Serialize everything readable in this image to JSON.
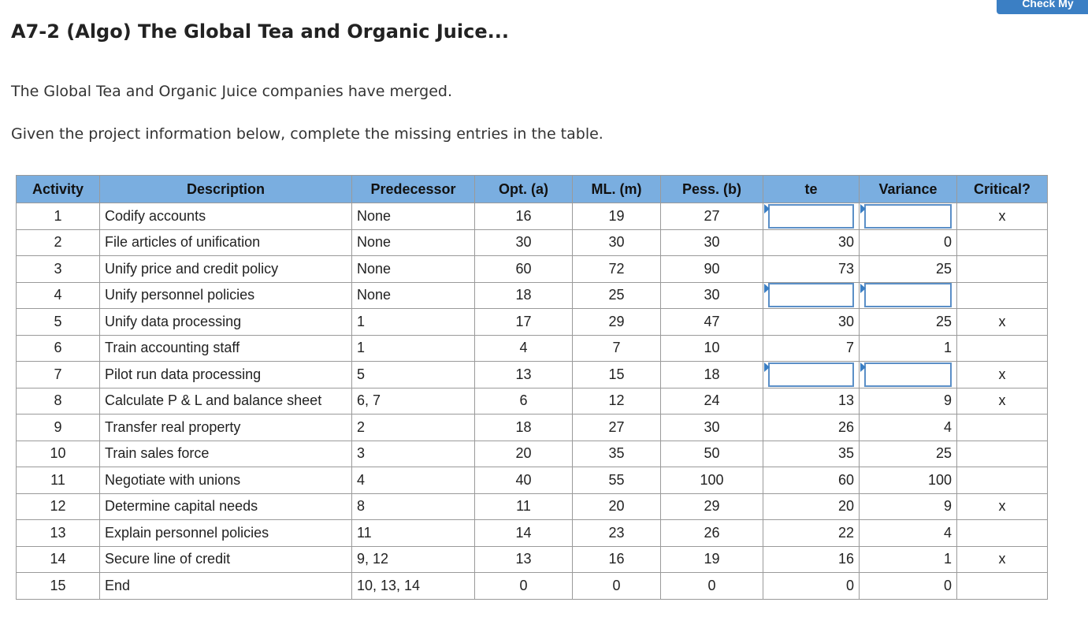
{
  "header": {
    "check_button": "Check My",
    "title": "A7-2 (Algo) The Global Tea and Organic Juice...",
    "intro": "The Global Tea and Organic Juice companies have merged.",
    "instruction": "Given the project information below, complete the missing entries in the table."
  },
  "table": {
    "columns": [
      "Activity",
      "Description",
      "Predecessor",
      "Opt. (a)",
      "ML. (m)",
      "Pess. (b)",
      "te",
      "Variance",
      "Critical?"
    ],
    "rows": [
      {
        "activity": "1",
        "description": "Codify accounts",
        "predecessor": "None",
        "opt": "16",
        "ml": "19",
        "pess": "27",
        "te": null,
        "variance": null,
        "critical": "x"
      },
      {
        "activity": "2",
        "description": "File articles of unification",
        "predecessor": "None",
        "opt": "30",
        "ml": "30",
        "pess": "30",
        "te": "30",
        "variance": "0",
        "critical": ""
      },
      {
        "activity": "3",
        "description": "Unify price and credit policy",
        "predecessor": "None",
        "opt": "60",
        "ml": "72",
        "pess": "90",
        "te": "73",
        "variance": "25",
        "critical": ""
      },
      {
        "activity": "4",
        "description": "Unify personnel policies",
        "predecessor": "None",
        "opt": "18",
        "ml": "25",
        "pess": "30",
        "te": null,
        "variance": null,
        "critical": ""
      },
      {
        "activity": "5",
        "description": "Unify data processing",
        "predecessor": "1",
        "opt": "17",
        "ml": "29",
        "pess": "47",
        "te": "30",
        "variance": "25",
        "critical": "x"
      },
      {
        "activity": "6",
        "description": "Train accounting staff",
        "predecessor": "1",
        "opt": "4",
        "ml": "7",
        "pess": "10",
        "te": "7",
        "variance": "1",
        "critical": ""
      },
      {
        "activity": "7",
        "description": "Pilot run data processing",
        "predecessor": "5",
        "opt": "13",
        "ml": "15",
        "pess": "18",
        "te": null,
        "variance": null,
        "critical": "x"
      },
      {
        "activity": "8",
        "description": "Calculate P & L and balance sheet",
        "predecessor": "6, 7",
        "opt": "6",
        "ml": "12",
        "pess": "24",
        "te": "13",
        "variance": "9",
        "critical": "x"
      },
      {
        "activity": "9",
        "description": "Transfer real property",
        "predecessor": "2",
        "opt": "18",
        "ml": "27",
        "pess": "30",
        "te": "26",
        "variance": "4",
        "critical": ""
      },
      {
        "activity": "10",
        "description": "Train sales force",
        "predecessor": "3",
        "opt": "20",
        "ml": "35",
        "pess": "50",
        "te": "35",
        "variance": "25",
        "critical": ""
      },
      {
        "activity": "11",
        "description": "Negotiate with unions",
        "predecessor": "4",
        "opt": "40",
        "ml": "55",
        "pess": "100",
        "te": "60",
        "variance": "100",
        "critical": ""
      },
      {
        "activity": "12",
        "description": "Determine capital needs",
        "predecessor": "8",
        "opt": "11",
        "ml": "20",
        "pess": "29",
        "te": "20",
        "variance": "9",
        "critical": "x"
      },
      {
        "activity": "13",
        "description": "Explain personnel policies",
        "predecessor": "11",
        "opt": "14",
        "ml": "23",
        "pess": "26",
        "te": "22",
        "variance": "4",
        "critical": ""
      },
      {
        "activity": "14",
        "description": "Secure line of credit",
        "predecessor": "9, 12",
        "opt": "13",
        "ml": "16",
        "pess": "19",
        "te": "16",
        "variance": "1",
        "critical": "x"
      },
      {
        "activity": "15",
        "description": "End",
        "predecessor": "10, 13, 14",
        "opt": "0",
        "ml": "0",
        "pess": "0",
        "te": "0",
        "variance": "0",
        "critical": ""
      }
    ]
  }
}
